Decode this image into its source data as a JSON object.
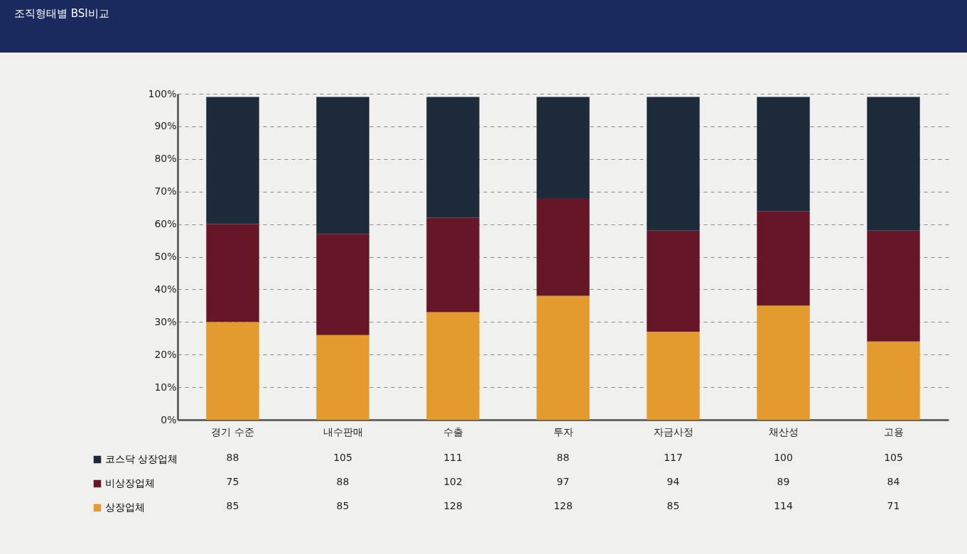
{
  "chart_data": {
    "type": "bar",
    "title": "조직형태별 BSI비교",
    "stacked": true,
    "categories": [
      "경기 수준",
      "내수판매",
      "수출",
      "투자",
      "자금사정",
      "채산성",
      "고용"
    ],
    "series": [
      {
        "name": "상장업체",
        "color": "#e39a2e",
        "values": [
          30,
          26,
          33,
          38,
          27,
          35,
          24
        ]
      },
      {
        "name": "비상장업체",
        "color": "#661626",
        "values": [
          30,
          31,
          29,
          30,
          31,
          29,
          34
        ]
      },
      {
        "name": "코스닥 상장업체",
        "color": "#1c2a3a",
        "values": [
          39,
          42,
          37,
          31,
          41,
          35,
          41
        ]
      }
    ],
    "ylim": [
      0,
      100
    ],
    "yticks": [
      {
        "value": 0,
        "label": "0%"
      },
      {
        "value": 10,
        "label": "10%"
      },
      {
        "value": 20,
        "label": "20%"
      },
      {
        "value": 30,
        "label": "30%"
      },
      {
        "value": 40,
        "label": "40%"
      },
      {
        "value": 50,
        "label": "50%"
      },
      {
        "value": 60,
        "label": "60%"
      },
      {
        "value": 70,
        "label": "70%"
      },
      {
        "value": 80,
        "label": "80%"
      },
      {
        "value": 90,
        "label": "90%"
      },
      {
        "value": 100,
        "label": "100%"
      }
    ],
    "grid": "y",
    "legend": "bottom left",
    "annotations": [
      "88",
      "105",
      "111",
      "88",
      "117",
      "100",
      "105",
      "75",
      "88",
      "102",
      "97",
      "94",
      "89",
      "84",
      "85",
      "85",
      "128",
      "128",
      "85",
      "114",
      "71"
    ]
  }
}
